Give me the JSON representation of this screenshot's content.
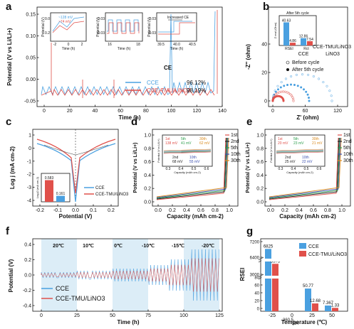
{
  "colors": {
    "cce": "#4aa0e0",
    "tmu": "#e0504a",
    "shade": "#dcedf7"
  },
  "panel_labels": [
    "a",
    "b",
    "c",
    "d",
    "e",
    "f",
    "g"
  ],
  "chart_data": [
    {
      "panel": "a",
      "type": "line",
      "xlabel": "Time (h)",
      "ylabel": "Potential (V vs Li/Li+)",
      "xlim": [
        -5,
        140
      ],
      "ylim": [
        -0.06,
        0.16
      ],
      "xticks": [
        "0",
        "20",
        "40",
        "60",
        "80",
        "100",
        "120",
        "140"
      ],
      "yticks": [
        "-0.05",
        "0.00",
        "0.05",
        "0.10",
        "0.15"
      ],
      "legend_title": "CE",
      "series": [
        {
          "name": "CCE",
          "ce": "96.12%"
        },
        {
          "name": "CCE-TMU/LiNO3",
          "ce": "98.19%"
        }
      ],
      "insets": [
        {
          "ylabel": "Potential (V)",
          "xlabel": "Time (h)",
          "xticks": [
            "-2",
            "0",
            "2"
          ],
          "yticks": [
            "0.0",
            "0.2"
          ],
          "ann": [
            "~128 mV",
            "~74 mV"
          ]
        },
        {
          "ylabel": "Potential (V)",
          "xlabel": "Time (h)",
          "xticks": [
            "16",
            "18"
          ],
          "yticks": [
            "0.03",
            "-0.03"
          ]
        },
        {
          "ylabel": "Potential (V)",
          "xlabel": "Time (h)",
          "xticks": [
            "39.5",
            "40.0",
            "40.5"
          ],
          "yticks": [
            "0.03",
            "-0.03"
          ],
          "ann": [
            "Increased CE"
          ]
        }
      ]
    },
    {
      "panel": "b",
      "type": "scatter",
      "xlabel": "Z' (ohm)",
      "ylabel": "-Z'' (ohm)",
      "xticks": [
        "0",
        "60",
        "120"
      ],
      "yticks": [
        "0",
        "20",
        "40"
      ],
      "legend": [
        "CCE",
        "CCE-TMU/LiNO3",
        "Before cycle",
        "After 5th cycle"
      ],
      "inset": {
        "title": "After 5th cycle",
        "ylabel": "Z real (Ohm)",
        "categories": [
          "RSEI",
          "Rct"
        ],
        "cce": [
          40.63,
          12.86
        ],
        "tmu": [
          4.86,
          7.54
        ]
      }
    },
    {
      "panel": "c",
      "type": "line",
      "xlabel": "Potential (V)",
      "ylabel": "Log j (mA cm-2)",
      "xticks": [
        "-0.2",
        "-0.1",
        "0.0",
        "0.1",
        "0.2"
      ],
      "yticks": [
        "-4",
        "-3",
        "-2",
        "-1",
        "0",
        "1"
      ],
      "legend": [
        "CCE",
        "CCE-TMU/LiNO3"
      ],
      "inset": {
        "ylabel": "Log j0 (mA cm-2)",
        "values": [
          0.583,
          0.161
        ]
      }
    },
    {
      "panel": "d",
      "type": "line",
      "xlabel": "Capacity (mAh cm-2)",
      "ylabel": "Potential (V vs Li/Li+)",
      "xticks": [
        "0.0",
        "0.2",
        "0.4",
        "0.6",
        "0.8",
        "1.0"
      ],
      "yticks": [
        "0.0",
        "0.2",
        "0.4",
        "0.6",
        "0.8",
        "1.0"
      ],
      "legend": [
        "1st",
        "2nd",
        "5th",
        "10th",
        "30th"
      ],
      "inset": {
        "ylabel": "Potential (V vs Li/Li+)",
        "xlabel": "Capacity (mAh cm-2)",
        "xticks": [
          "0.3",
          "0.4",
          "0.5",
          "0.6"
        ],
        "ann": [
          "1st",
          "138 mV",
          "5th",
          "41 mV",
          "30th",
          "62 mV",
          "2nd",
          "68 mV",
          "10th",
          "55 mV"
        ]
      }
    },
    {
      "panel": "e",
      "type": "line",
      "xlabel": "Capacity (mAh cm-2)",
      "ylabel": "Potential (V vs Li/Li+)",
      "xticks": [
        "0.0",
        "0.2",
        "0.4",
        "0.6",
        "0.8",
        "1.0"
      ],
      "yticks": [
        "0.0",
        "0.2",
        "0.4",
        "0.6",
        "0.8",
        "1.0"
      ],
      "legend": [
        "1st",
        "2nd",
        "5th",
        "10th",
        "30th"
      ],
      "inset": {
        "ylabel": "Potential (V vs Li/Li+)",
        "xlabel": "Capacity (mAh cm-2)",
        "xticks": [
          "0.3",
          "0.4",
          "0.5",
          "0.6"
        ],
        "ann": [
          "1st",
          "20 mV",
          "5th",
          "23 mV",
          "30th",
          "21 mV",
          "2nd",
          "25 mV",
          "10th",
          "22 mV"
        ]
      }
    },
    {
      "panel": "f",
      "type": "line",
      "xlabel": "Time (h)",
      "ylabel": "Potential (V)",
      "xticks": [
        "0",
        "25",
        "50",
        "75",
        "100",
        "125"
      ],
      "yticks": [
        "-0.4",
        "-0.2",
        "0.0",
        "0.2",
        "0.4"
      ],
      "temperatures": [
        "20℃",
        "10℃",
        "0℃",
        "-10℃",
        "-15℃",
        "-20℃"
      ],
      "legend": [
        "CCE",
        "CCE-TMU/LiNO3"
      ]
    },
    {
      "panel": "g",
      "type": "bar",
      "xlabel": "Temperature (℃)",
      "ylabel": "RSEI",
      "categories": [
        "-25",
        "0",
        "25",
        "50"
      ],
      "yticks": [
        "0",
        "20",
        "40",
        "60",
        "80",
        "3000",
        "6400",
        "7200"
      ],
      "series": [
        {
          "name": "CCE",
          "values": [
            6825,
            360.5,
            50.77,
            7.367
          ],
          "labels": [
            "6825",
            "360.5",
            "50.77",
            "7.367"
          ]
        },
        {
          "name": "CCE-TMU/LiNO3",
          "values": [
            3573,
            154,
            12.68,
            1.33
          ],
          "labels": [
            "3573",
            "154",
            "12.68",
            "1.33"
          ]
        }
      ]
    }
  ]
}
